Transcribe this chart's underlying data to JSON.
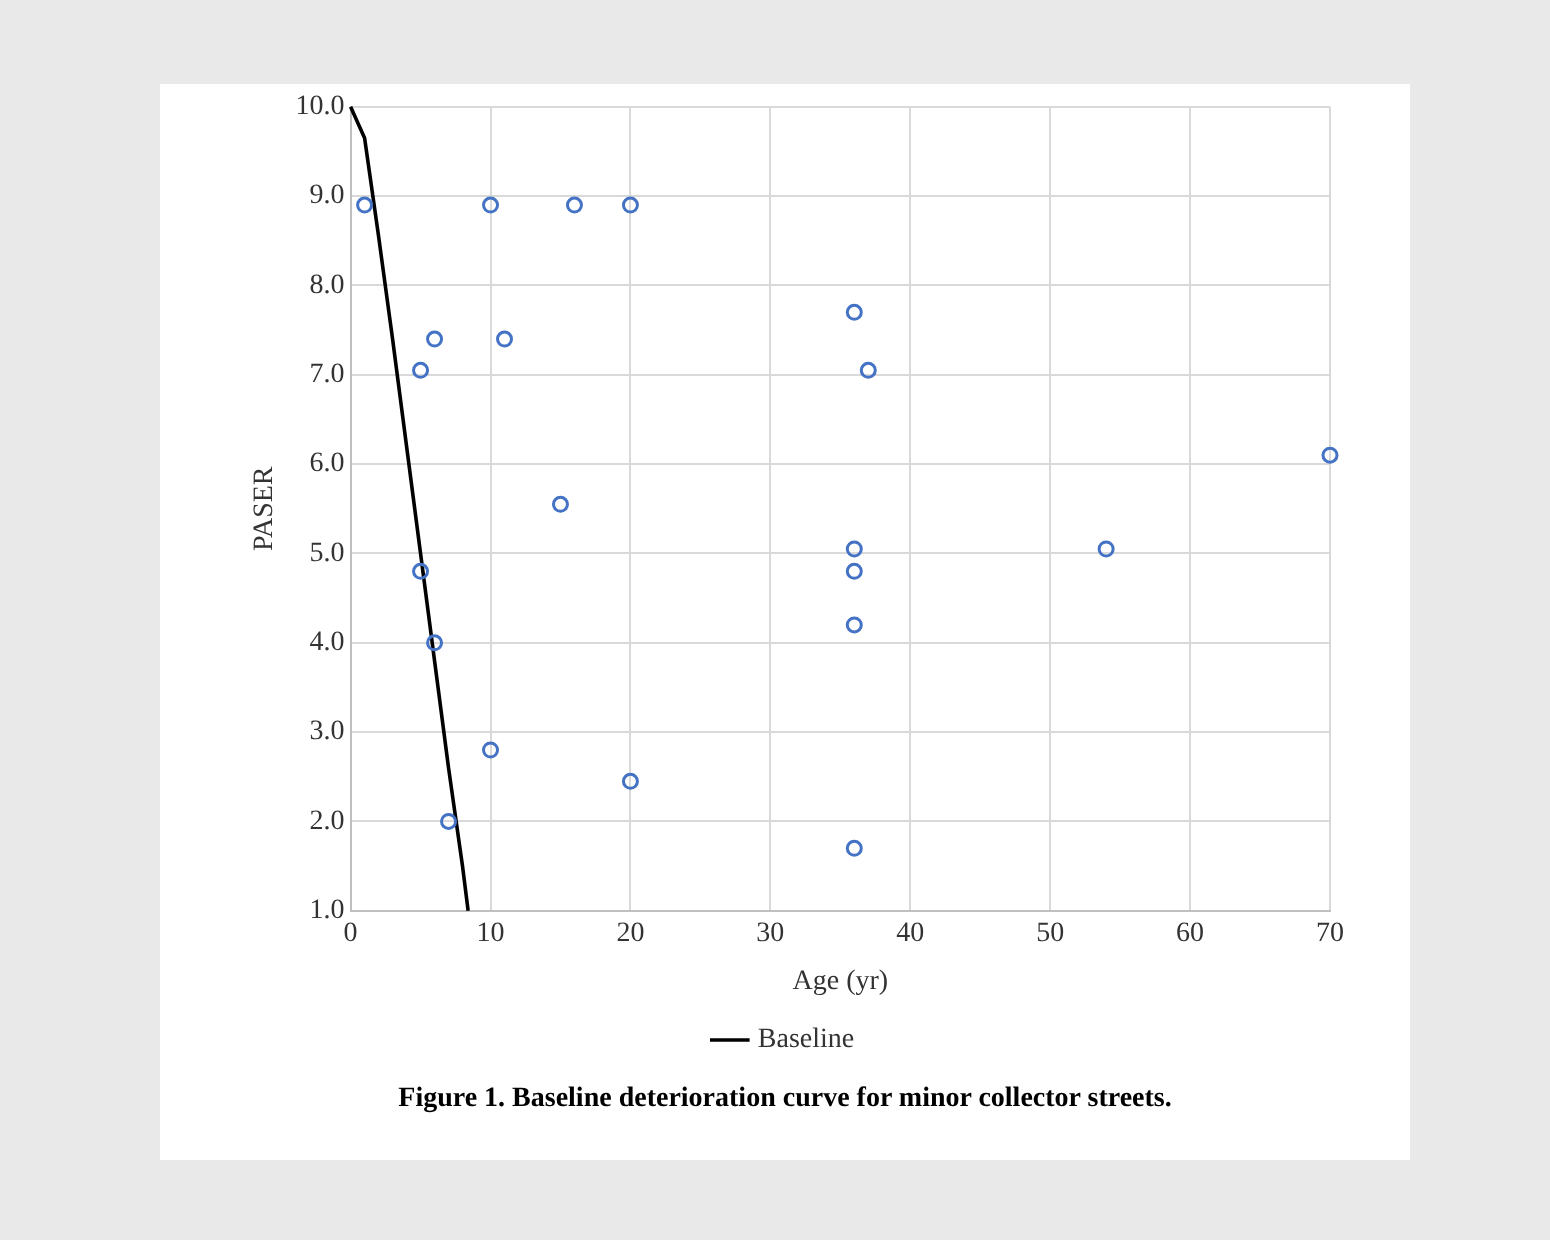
{
  "chart_data": {
    "type": "scatter",
    "xlabel": "Age (yr)",
    "ylabel": "PASER",
    "xlim": [
      0,
      70
    ],
    "xticks": [
      0,
      10,
      20,
      30,
      40,
      50,
      60,
      70
    ],
    "ylim": [
      1,
      10
    ],
    "yticks": [
      {
        "value": 1,
        "label": "1.0"
      },
      {
        "value": 2,
        "label": "2.0"
      },
      {
        "value": 3,
        "label": "3.0"
      },
      {
        "value": 4,
        "label": "4.0"
      },
      {
        "value": 5,
        "label": "5.0"
      },
      {
        "value": 6,
        "label": "6.0"
      },
      {
        "value": 7,
        "label": "7.0"
      },
      {
        "value": 8,
        "label": "8.0"
      },
      {
        "value": 9,
        "label": "9.0"
      },
      {
        "value": 10,
        "label": "10.0"
      }
    ],
    "grid": true,
    "legend": "bottom",
    "series": [
      {
        "color": "#4472c4",
        "marker": "circle",
        "x": [
          1,
          10,
          16,
          20,
          6,
          11,
          5,
          15,
          5,
          6,
          10,
          20,
          7,
          36,
          37,
          70,
          36,
          36,
          54,
          36,
          36
        ],
        "values": [
          8.9,
          8.9,
          8.9,
          8.9,
          7.4,
          7.4,
          7.05,
          5.55,
          4.8,
          4.0,
          2.8,
          2.45,
          2.0,
          7.7,
          7.05,
          6.1,
          5.05,
          4.8,
          5.05,
          4.2,
          1.7
        ]
      },
      {
        "type": "line",
        "name": "Baseline",
        "color": "#000000",
        "marker": "none",
        "line_style": "solid",
        "x": [
          0,
          1,
          2,
          3,
          4,
          5,
          6,
          7,
          8,
          8.4
        ],
        "values": [
          10,
          9.65,
          8.55,
          7.4,
          6.2,
          5.0,
          3.8,
          2.6,
          1.5,
          1.0
        ]
      }
    ],
    "annotations": [
      "Figure 1.  Baseline deterioration curve for minor collector streets."
    ]
  }
}
